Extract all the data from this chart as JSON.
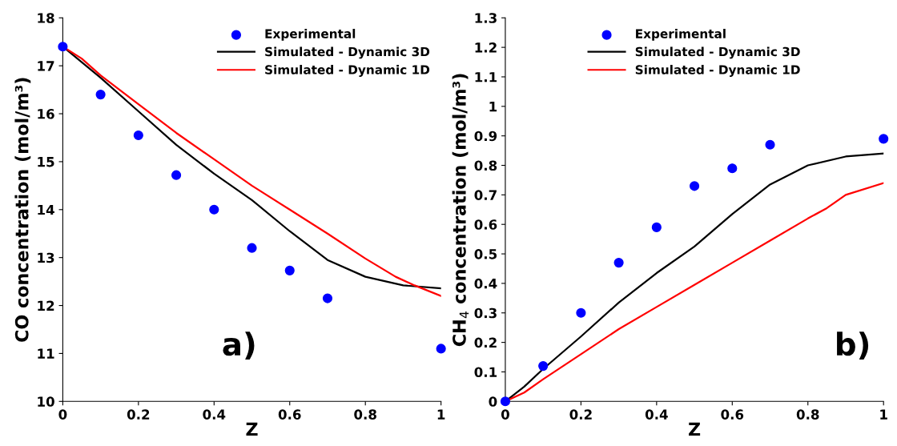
{
  "chart_data": [
    {
      "type": "line",
      "xlabel": "Z",
      "ylabel": "CO concentration (mol/m³)",
      "xlim": [
        0,
        1
      ],
      "ylim": [
        10,
        18
      ],
      "xticks": [
        0,
        0.2,
        0.4,
        0.6,
        0.8,
        1
      ],
      "yticks": [
        10,
        11,
        12,
        13,
        14,
        15,
        16,
        17,
        18
      ],
      "legend": "top right",
      "grid": false,
      "annotations": [
        "a)"
      ],
      "series": [
        {
          "name": "Experimental",
          "type": "scatter",
          "marker": "circle",
          "color": "#0000ff",
          "x": [
            0,
            0.1,
            0.2,
            0.3,
            0.4,
            0.5,
            0.6,
            0.7,
            1
          ],
          "values": [
            17.4,
            16.4,
            15.55,
            14.72,
            14.0,
            13.2,
            12.73,
            12.15,
            11.1
          ]
        },
        {
          "name": "Simulated - Dynamic 3D",
          "color": "#000000",
          "x": [
            0,
            0.1,
            0.2,
            0.3,
            0.4,
            0.5,
            0.6,
            0.7,
            0.8,
            0.9,
            1
          ],
          "values": [
            17.4,
            16.75,
            16.05,
            15.35,
            14.75,
            14.2,
            13.55,
            12.95,
            12.6,
            12.42,
            12.36
          ]
        },
        {
          "name": "Simulated - Dynamic 1D",
          "color": "#ff0000",
          "x": [
            0,
            0.05,
            0.1,
            0.2,
            0.3,
            0.4,
            0.5,
            0.6,
            0.7,
            0.8,
            0.88,
            0.93,
            1
          ],
          "values": [
            17.4,
            17.15,
            16.8,
            16.2,
            15.6,
            15.05,
            14.5,
            14.0,
            13.5,
            12.98,
            12.6,
            12.42,
            12.2
          ]
        }
      ]
    },
    {
      "type": "line",
      "xlabel": "Z",
      "ylabel": "CH$_{4}$ concentration (mol/m³)",
      "xlim": [
        0,
        1
      ],
      "ylim": [
        0,
        1.3
      ],
      "xticks": [
        0,
        0.2,
        0.4,
        0.6,
        0.8,
        1
      ],
      "yticks": [
        0,
        0.1,
        0.2,
        0.3,
        0.4,
        0.5,
        0.6,
        0.7,
        0.8,
        0.9,
        1,
        1.1,
        1.2,
        1.3
      ],
      "legend": "top",
      "grid": false,
      "annotations": [
        "b)"
      ],
      "series": [
        {
          "name": "Experimental",
          "type": "scatter",
          "marker": "circle",
          "color": "#0000ff",
          "x": [
            0,
            0.1,
            0.2,
            0.3,
            0.4,
            0.5,
            0.6,
            0.7,
            1
          ],
          "values": [
            0,
            0.12,
            0.3,
            0.47,
            0.59,
            0.73,
            0.79,
            0.87,
            0.89
          ]
        },
        {
          "name": "Simulated - Dynamic 3D",
          "color": "#000000",
          "x": [
            0,
            0.05,
            0.1,
            0.2,
            0.3,
            0.4,
            0.5,
            0.6,
            0.7,
            0.8,
            0.9,
            1
          ],
          "values": [
            0,
            0.05,
            0.11,
            0.22,
            0.335,
            0.435,
            0.525,
            0.635,
            0.735,
            0.8,
            0.83,
            0.84
          ]
        },
        {
          "name": "Simulated - Dynamic 1D",
          "color": "#ff0000",
          "x": [
            0,
            0.05,
            0.1,
            0.2,
            0.3,
            0.4,
            0.5,
            0.6,
            0.7,
            0.8,
            0.85,
            0.9,
            1
          ],
          "values": [
            0,
            0.03,
            0.075,
            0.16,
            0.245,
            0.32,
            0.395,
            0.47,
            0.545,
            0.62,
            0.655,
            0.7,
            0.74
          ]
        }
      ]
    }
  ]
}
